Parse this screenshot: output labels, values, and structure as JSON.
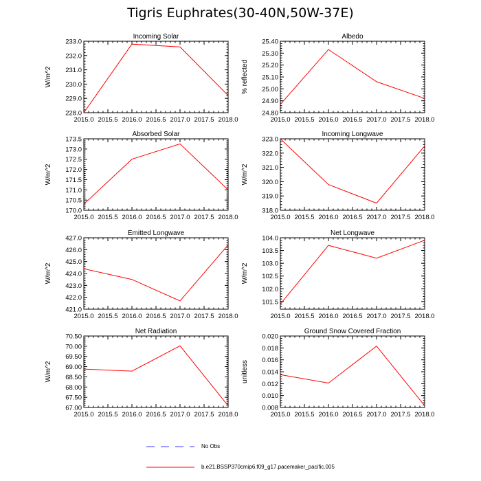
{
  "title": "Tigris Euphrates(30-40N,50W-37E)",
  "colors": {
    "series": "#ff0000",
    "obs": "#3c3cff",
    "axis": "#000000"
  },
  "legend": {
    "obs_label": "No Obs",
    "model_label": "b.e21.BSSP370cmip6.f09_g17.pacemaker_pacific.005"
  },
  "chart_data": [
    {
      "type": "line",
      "title": "Incoming Solar",
      "ylabel": "W/m^2",
      "xlabel": "",
      "x": [
        2015,
        2016,
        2017,
        2018
      ],
      "values": [
        228.0,
        232.8,
        232.6,
        229.2
      ],
      "xlim": [
        2015,
        2018
      ],
      "ylim": [
        228,
        233
      ],
      "ydecimals": 1,
      "xticks": [
        "2015.0",
        "2015.5",
        "2016.0",
        "2016.5",
        "2017.0",
        "2017.5",
        "2018.0"
      ],
      "yticks": [
        "228.0",
        "229.0",
        "230.0",
        "231.0",
        "232.0",
        "233.0"
      ]
    },
    {
      "type": "line",
      "title": "Albedo",
      "ylabel": "% reflected",
      "xlabel": "",
      "x": [
        2015,
        2016,
        2017,
        2018
      ],
      "values": [
        24.87,
        25.33,
        25.06,
        24.92
      ],
      "xlim": [
        2015,
        2018
      ],
      "ylim": [
        24.8,
        25.4
      ],
      "ydecimals": 2,
      "xticks": [
        "2015.0",
        "2015.5",
        "2016.0",
        "2016.5",
        "2017.0",
        "2017.5",
        "2018.0"
      ],
      "yticks": [
        "24.80",
        "24.90",
        "25.00",
        "25.10",
        "25.20",
        "25.30",
        "25.40"
      ]
    },
    {
      "type": "line",
      "title": "Absorbed Solar",
      "ylabel": "W/m^2",
      "xlabel": "",
      "x": [
        2015,
        2016,
        2017,
        2018
      ],
      "values": [
        170.3,
        172.5,
        173.25,
        171.0
      ],
      "xlim": [
        2015,
        2018
      ],
      "ylim": [
        170,
        173.5
      ],
      "ydecimals": 1,
      "xticks": [
        "2015.0",
        "2015.5",
        "2016.0",
        "2016.5",
        "2017.0",
        "2017.5",
        "2018.0"
      ],
      "yticks": [
        "170.0",
        "170.5",
        "171.0",
        "171.5",
        "172.0",
        "172.5",
        "173.0",
        "173.5"
      ]
    },
    {
      "type": "line",
      "title": "Incoming Longwave",
      "ylabel": "W/m^2",
      "xlabel": "",
      "x": [
        2015,
        2016,
        2017,
        2018
      ],
      "values": [
        323.0,
        319.8,
        318.5,
        322.5
      ],
      "xlim": [
        2015,
        2018
      ],
      "ylim": [
        318,
        323
      ],
      "ydecimals": 1,
      "xticks": [
        "2015.0",
        "2015.5",
        "2016.0",
        "2016.5",
        "2017.0",
        "2017.5",
        "2018.0"
      ],
      "yticks": [
        "318.0",
        "319.0",
        "320.0",
        "321.0",
        "322.0",
        "323.0"
      ]
    },
    {
      "type": "line",
      "title": "Emitted Longwave",
      "ylabel": "W/m^2",
      "xlabel": "",
      "x": [
        2015,
        2016,
        2017,
        2018
      ],
      "values": [
        424.4,
        423.5,
        421.7,
        426.4
      ],
      "xlim": [
        2015,
        2018
      ],
      "ylim": [
        421,
        427
      ],
      "ydecimals": 1,
      "xticks": [
        "2015.0",
        "2015.5",
        "2016.0",
        "2016.5",
        "2017.0",
        "2017.5",
        "2018.0"
      ],
      "yticks": [
        "421.0",
        "422.0",
        "423.0",
        "424.0",
        "425.0",
        "426.0",
        "427.0"
      ]
    },
    {
      "type": "line",
      "title": "Net Longwave",
      "ylabel": "W/m^2",
      "xlabel": "",
      "x": [
        2015,
        2016,
        2017,
        2018
      ],
      "values": [
        101.4,
        103.7,
        103.2,
        103.9
      ],
      "xlim": [
        2015,
        2018
      ],
      "ylim": [
        101.2,
        104
      ],
      "ydecimals": 1,
      "xticks": [
        "2015.0",
        "2015.5",
        "2016.0",
        "2016.5",
        "2017.0",
        "2017.5",
        "2018.0"
      ],
      "yticks": [
        "101.5",
        "102.0",
        "102.5",
        "103.0",
        "103.5",
        "104.0"
      ]
    },
    {
      "type": "line",
      "title": "Net Radiation",
      "ylabel": "W/m^2",
      "xlabel": "",
      "x": [
        2015,
        2016,
        2017,
        2018
      ],
      "values": [
        68.88,
        68.78,
        70.02,
        67.08
      ],
      "xlim": [
        2015,
        2018
      ],
      "ylim": [
        67,
        70.5
      ],
      "ydecimals": 2,
      "xticks": [
        "2015.0",
        "2015.5",
        "2016.0",
        "2016.5",
        "2017.0",
        "2017.5",
        "2018.0"
      ],
      "yticks": [
        "67.00",
        "67.50",
        "68.00",
        "68.50",
        "69.00",
        "69.50",
        "70.00",
        "70.50"
      ]
    },
    {
      "type": "line",
      "title": "Ground Snow Covered Fraction",
      "ylabel": "unitless",
      "xlabel": "",
      "x": [
        2015,
        2016,
        2017,
        2018
      ],
      "values": [
        0.0135,
        0.0121,
        0.0183,
        0.0083
      ],
      "xlim": [
        2015,
        2018
      ],
      "ylim": [
        0.008,
        0.02
      ],
      "ydecimals": 3,
      "xticks": [
        "2015.0",
        "2015.5",
        "2016.0",
        "2016.5",
        "2017.0",
        "2017.5",
        "2018.0"
      ],
      "yticks": [
        "0.008",
        "0.010",
        "0.012",
        "0.014",
        "0.016",
        "0.018",
        "0.020"
      ]
    }
  ]
}
